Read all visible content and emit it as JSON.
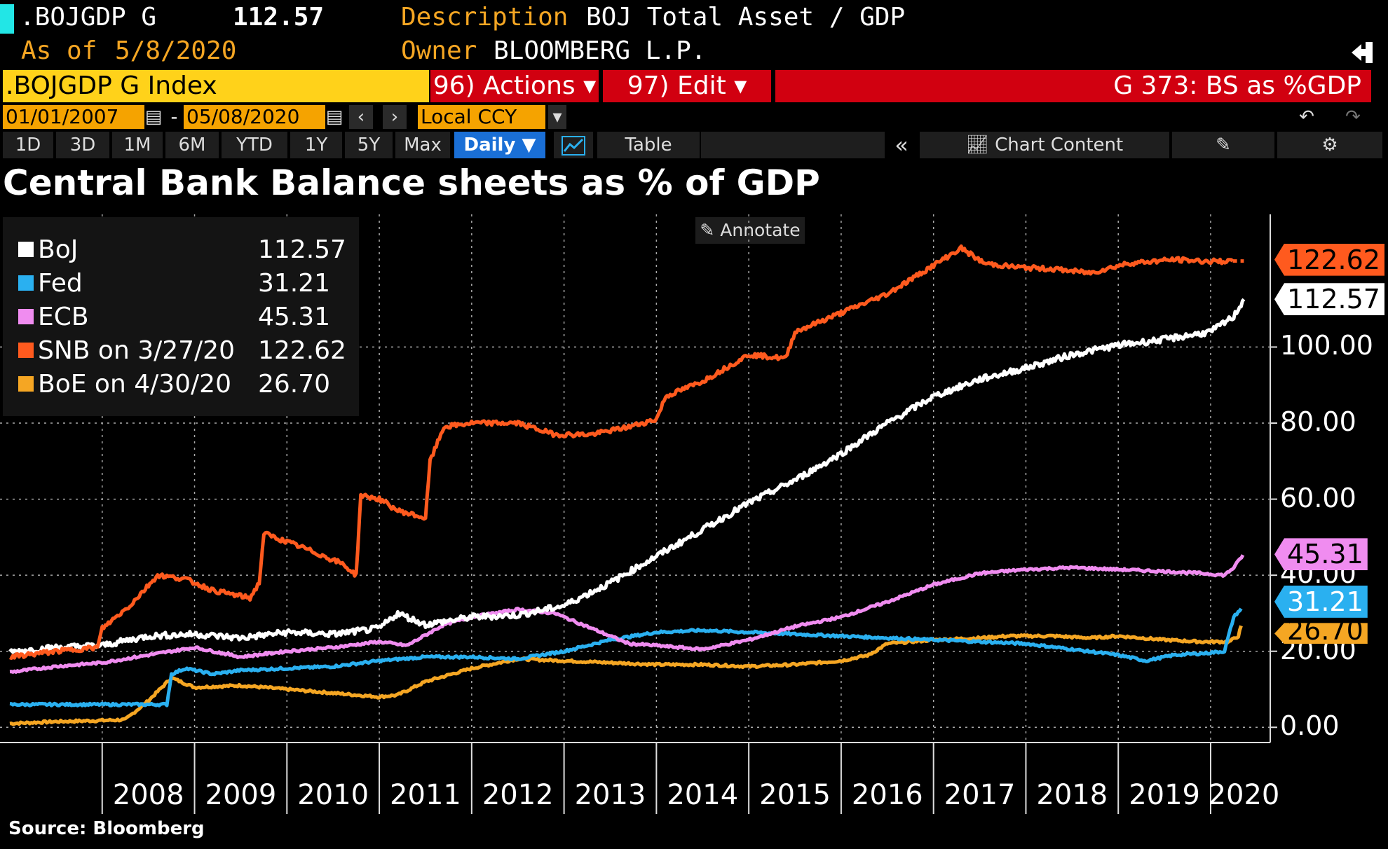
{
  "header": {
    "ticker": ".BOJGDP G",
    "price": "112.57",
    "description_label": "Description",
    "description": "BOJ Total Asset / GDP",
    "asof_label": "As of",
    "asof_date": "5/8/2020",
    "owner_label": "Owner",
    "owner": "BLOOMBERG L.P."
  },
  "command_bar": {
    "security": ".BOJGDP G Index",
    "actions": "96) Actions ▾",
    "edit": "97) Edit ▾",
    "function": "G 373: BS as %GDP"
  },
  "date_bar": {
    "start": "01/01/2007",
    "dash": "-",
    "end": "05/08/2020",
    "currency": "Local CCY"
  },
  "toolbar": {
    "ranges": [
      "1D",
      "3D",
      "1M",
      "6M",
      "YTD",
      "1Y",
      "5Y",
      "Max"
    ],
    "frequency": "Daily ▼",
    "table": "Table",
    "chart_content": "Chart Content",
    "annotate": "Annotate"
  },
  "footer": {
    "source": "Source: Bloomberg"
  },
  "colors": {
    "boj": "#ffffff",
    "fed": "#2ab0f0",
    "ecb": "#f08cf0",
    "snb": "#ff5a1e",
    "boe": "#f5a623",
    "accent": "#f5a300",
    "red": "#d10010"
  },
  "chart_data": {
    "type": "line",
    "title": "Central Bank Balance sheets as % of GDP",
    "xlabel": "",
    "ylabel": "",
    "xlim": [
      2007.0,
      2020.63
    ],
    "ylim": [
      -4,
      136
    ],
    "yticks": [
      "0.00",
      "20.00",
      "40.00",
      "60.00",
      "80.00",
      "100.00"
    ],
    "yticks_values": [
      0,
      20,
      40,
      60,
      80,
      100
    ],
    "xticks": [
      "2008",
      "2009",
      "2010",
      "2011",
      "2012",
      "2013",
      "2014",
      "2015",
      "2016",
      "2017",
      "2018",
      "2019",
      "2020"
    ],
    "legend": [
      {
        "name": "BoJ",
        "value": "112.57"
      },
      {
        "name": "Fed",
        "value": "31.21"
      },
      {
        "name": "ECB",
        "value": "45.31"
      },
      {
        "name": "SNB on 3/27/20",
        "value": "122.62"
      },
      {
        "name": "BoE on 4/30/20",
        "value": "26.70"
      }
    ],
    "last_value_tags": [
      {
        "label": "122.62",
        "value": 122.62,
        "series": "snb"
      },
      {
        "label": "112.57",
        "value": 112.57,
        "series": "boj"
      },
      {
        "label": "45.31",
        "value": 45.31,
        "series": "ecb"
      },
      {
        "label": "31.21",
        "value": 31.21,
        "series": "fed"
      },
      {
        "label": "26.70",
        "value": 26.7,
        "series": "boe"
      }
    ],
    "series": [
      {
        "key": "boj",
        "name": "BoJ",
        "points": [
          [
            2007.0,
            19.8
          ],
          [
            2007.5,
            21
          ],
          [
            2008.0,
            21.5
          ],
          [
            2008.5,
            24
          ],
          [
            2009.0,
            24.5
          ],
          [
            2009.5,
            23.5
          ],
          [
            2010.0,
            25
          ],
          [
            2010.5,
            24.5
          ],
          [
            2011.0,
            26
          ],
          [
            2011.2,
            30
          ],
          [
            2011.5,
            27
          ],
          [
            2012.0,
            29
          ],
          [
            2012.5,
            29.5
          ],
          [
            2013.0,
            32
          ],
          [
            2013.5,
            38
          ],
          [
            2014.0,
            45
          ],
          [
            2014.5,
            52
          ],
          [
            2015.0,
            59
          ],
          [
            2015.5,
            65
          ],
          [
            2016.0,
            72
          ],
          [
            2016.5,
            80
          ],
          [
            2017.0,
            87
          ],
          [
            2017.5,
            91.5
          ],
          [
            2018.0,
            94.5
          ],
          [
            2018.5,
            98
          ],
          [
            2019.0,
            100.5
          ],
          [
            2019.5,
            102
          ],
          [
            2020.0,
            104
          ],
          [
            2020.25,
            108
          ],
          [
            2020.36,
            112.57
          ]
        ]
      },
      {
        "key": "fed",
        "name": "Fed",
        "points": [
          [
            2007.0,
            6
          ],
          [
            2007.8,
            6
          ],
          [
            2008.7,
            6
          ],
          [
            2008.75,
            14
          ],
          [
            2008.9,
            15.5
          ],
          [
            2009.2,
            14
          ],
          [
            2009.5,
            15
          ],
          [
            2010.0,
            15.5
          ],
          [
            2010.5,
            16
          ],
          [
            2011.0,
            17.5
          ],
          [
            2011.5,
            18.5
          ],
          [
            2012.0,
            18.5
          ],
          [
            2012.5,
            18
          ],
          [
            2013.0,
            20
          ],
          [
            2013.5,
            23
          ],
          [
            2014.0,
            25
          ],
          [
            2014.5,
            25.5
          ],
          [
            2015.0,
            25
          ],
          [
            2015.5,
            24.5
          ],
          [
            2016.0,
            24
          ],
          [
            2016.5,
            23.5
          ],
          [
            2017.0,
            23
          ],
          [
            2017.5,
            22.5
          ],
          [
            2018.0,
            22
          ],
          [
            2018.5,
            20.5
          ],
          [
            2019.0,
            19
          ],
          [
            2019.3,
            17.5
          ],
          [
            2019.6,
            19
          ],
          [
            2019.95,
            19.5
          ],
          [
            2020.15,
            20
          ],
          [
            2020.25,
            29
          ],
          [
            2020.33,
            31.21
          ]
        ]
      },
      {
        "key": "ecb",
        "name": "ECB",
        "points": [
          [
            2007.0,
            14.5
          ],
          [
            2007.5,
            16
          ],
          [
            2008.0,
            17
          ],
          [
            2008.75,
            20
          ],
          [
            2009.0,
            21
          ],
          [
            2009.5,
            18.5
          ],
          [
            2010.0,
            20
          ],
          [
            2010.5,
            21
          ],
          [
            2011.0,
            22.5
          ],
          [
            2011.3,
            21.5
          ],
          [
            2011.7,
            27
          ],
          [
            2012.0,
            29
          ],
          [
            2012.5,
            31
          ],
          [
            2012.9,
            30
          ],
          [
            2013.3,
            26
          ],
          [
            2013.7,
            22
          ],
          [
            2014.0,
            21.5
          ],
          [
            2014.5,
            20.5
          ],
          [
            2015.0,
            23
          ],
          [
            2015.5,
            26.5
          ],
          [
            2016.0,
            29
          ],
          [
            2016.5,
            33
          ],
          [
            2017.0,
            37.5
          ],
          [
            2017.5,
            40.5
          ],
          [
            2018.0,
            41.5
          ],
          [
            2018.5,
            42
          ],
          [
            2019.0,
            41.5
          ],
          [
            2019.5,
            41
          ],
          [
            2019.9,
            40.5
          ],
          [
            2020.15,
            40
          ],
          [
            2020.25,
            42
          ],
          [
            2020.35,
            45.31
          ]
        ]
      },
      {
        "key": "snb",
        "name": "SNB on 3/27/20",
        "points": [
          [
            2007.0,
            18.5
          ],
          [
            2007.5,
            20
          ],
          [
            2007.95,
            21
          ],
          [
            2008.0,
            26
          ],
          [
            2008.3,
            32
          ],
          [
            2008.6,
            40
          ],
          [
            2008.9,
            39
          ],
          [
            2009.2,
            36
          ],
          [
            2009.6,
            34
          ],
          [
            2009.7,
            38
          ],
          [
            2009.75,
            51
          ],
          [
            2010.2,
            47
          ],
          [
            2010.6,
            43
          ],
          [
            2010.75,
            40
          ],
          [
            2010.8,
            61
          ],
          [
            2011.0,
            60
          ],
          [
            2011.2,
            57
          ],
          [
            2011.5,
            55
          ],
          [
            2011.55,
            70
          ],
          [
            2011.7,
            79
          ],
          [
            2012.0,
            80
          ],
          [
            2012.5,
            80
          ],
          [
            2012.9,
            77
          ],
          [
            2013.3,
            77
          ],
          [
            2013.7,
            79
          ],
          [
            2014.0,
            81
          ],
          [
            2014.1,
            87
          ],
          [
            2014.5,
            91
          ],
          [
            2015.0,
            98
          ],
          [
            2015.4,
            97
          ],
          [
            2015.5,
            104
          ],
          [
            2016.0,
            109
          ],
          [
            2016.5,
            114
          ],
          [
            2016.9,
            120
          ],
          [
            2017.3,
            126
          ],
          [
            2017.55,
            122
          ],
          [
            2017.9,
            121
          ],
          [
            2018.3,
            120.5
          ],
          [
            2018.7,
            119.5
          ],
          [
            2019.1,
            122
          ],
          [
            2019.6,
            123
          ],
          [
            2020.0,
            122.5
          ],
          [
            2020.24,
            122.62
          ]
        ]
      },
      {
        "key": "boe",
        "name": "BoE on 4/30/20",
        "points": [
          [
            2007.0,
            1
          ],
          [
            2007.5,
            1.5
          ],
          [
            2008.0,
            1.8
          ],
          [
            2008.25,
            2
          ],
          [
            2008.5,
            7
          ],
          [
            2008.75,
            13
          ],
          [
            2009.0,
            10.5
          ],
          [
            2009.5,
            11
          ],
          [
            2010.0,
            10
          ],
          [
            2010.5,
            9
          ],
          [
            2011.0,
            8
          ],
          [
            2011.2,
            8.5
          ],
          [
            2011.5,
            12
          ],
          [
            2012.0,
            15.5
          ],
          [
            2012.5,
            18
          ],
          [
            2013.0,
            17.5
          ],
          [
            2013.5,
            17
          ],
          [
            2014.0,
            16.5
          ],
          [
            2014.5,
            16.5
          ],
          [
            2015.0,
            16
          ],
          [
            2015.5,
            16.5
          ],
          [
            2016.0,
            17.5
          ],
          [
            2016.3,
            19
          ],
          [
            2016.5,
            22
          ],
          [
            2017.0,
            23
          ],
          [
            2017.5,
            23.5
          ],
          [
            2017.8,
            24
          ],
          [
            2018.3,
            24
          ],
          [
            2018.7,
            23.5
          ],
          [
            2019.0,
            24
          ],
          [
            2019.5,
            23
          ],
          [
            2019.9,
            22.5
          ],
          [
            2020.2,
            22.5
          ],
          [
            2020.3,
            24
          ],
          [
            2020.33,
            26.7
          ]
        ]
      }
    ]
  }
}
